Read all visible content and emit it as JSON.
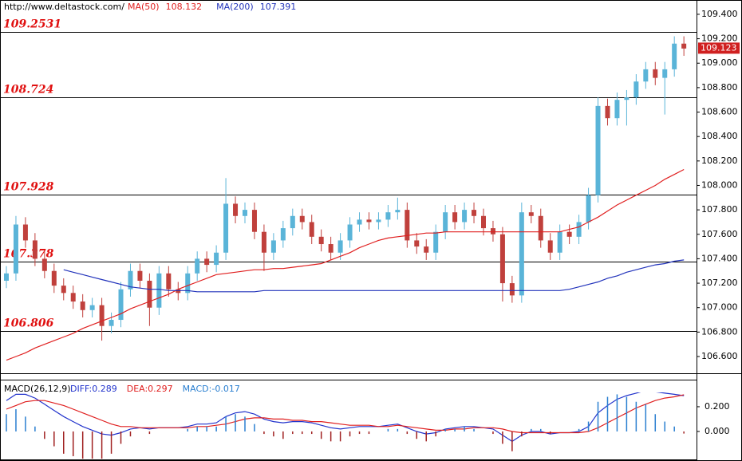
{
  "chart_data": [
    {
      "type": "candlestick",
      "source": "http://www.deltastock.com/",
      "up_color": "#5ab4d8",
      "down_color": "#c0403c",
      "open": [
        107.22,
        107.28,
        107.68,
        107.55,
        107.4,
        107.3,
        107.18,
        107.12,
        107.05,
        106.98,
        107.02,
        106.85,
        106.9,
        107.15,
        107.3,
        107.22,
        107.0,
        107.28,
        107.15,
        107.12,
        107.28,
        107.4,
        107.35,
        107.45,
        107.85,
        107.75,
        107.8,
        107.62,
        107.45,
        107.55,
        107.65,
        107.75,
        107.7,
        107.58,
        107.52,
        107.45,
        107.55,
        107.68,
        107.72,
        107.7,
        107.72,
        107.78,
        107.8,
        107.55,
        107.5,
        107.45,
        107.62,
        107.78,
        107.7,
        107.8,
        107.75,
        107.65,
        107.6,
        107.2,
        107.1,
        107.78,
        107.75,
        107.55,
        107.45,
        107.62,
        107.58,
        107.7,
        107.92,
        108.65,
        108.55,
        108.7,
        108.72,
        108.85,
        108.95,
        108.88,
        108.95,
        109.16
      ],
      "high": [
        107.34,
        107.75,
        107.74,
        107.61,
        107.46,
        107.36,
        107.24,
        107.18,
        107.11,
        107.08,
        107.08,
        106.96,
        107.21,
        107.36,
        107.36,
        107.28,
        107.34,
        107.34,
        107.21,
        107.34,
        107.46,
        107.46,
        107.51,
        108.06,
        107.91,
        107.86,
        107.86,
        107.68,
        107.61,
        107.71,
        107.81,
        107.81,
        107.76,
        107.64,
        107.58,
        107.61,
        107.74,
        107.78,
        107.78,
        107.78,
        107.84,
        107.9,
        107.86,
        107.61,
        107.56,
        107.68,
        107.84,
        107.84,
        107.86,
        107.86,
        107.81,
        107.71,
        107.66,
        107.26,
        107.86,
        107.84,
        107.81,
        107.61,
        107.68,
        107.68,
        107.76,
        107.98,
        108.72,
        108.71,
        108.76,
        108.78,
        108.91,
        109.01,
        109.01,
        109.01,
        109.22,
        109.22
      ],
      "low": [
        107.16,
        107.22,
        107.49,
        107.34,
        107.24,
        107.12,
        107.06,
        106.99,
        106.92,
        106.92,
        106.73,
        106.79,
        106.84,
        107.09,
        107.16,
        106.85,
        106.94,
        107.09,
        107.06,
        107.06,
        107.22,
        107.29,
        107.29,
        107.39,
        107.69,
        107.69,
        107.56,
        107.3,
        107.39,
        107.49,
        107.59,
        107.64,
        107.52,
        107.46,
        107.39,
        107.39,
        107.49,
        107.62,
        107.64,
        107.64,
        107.66,
        107.72,
        107.49,
        107.44,
        107.39,
        107.39,
        107.56,
        107.64,
        107.64,
        107.69,
        107.59,
        107.54,
        107.05,
        107.04,
        107.04,
        107.69,
        107.49,
        107.39,
        107.39,
        107.52,
        107.52,
        107.64,
        107.86,
        108.49,
        108.49,
        108.49,
        108.66,
        108.79,
        108.82,
        108.58,
        108.89,
        109.06
      ],
      "close": [
        107.28,
        107.68,
        107.55,
        107.4,
        107.3,
        107.18,
        107.12,
        107.05,
        106.98,
        107.02,
        106.85,
        106.9,
        107.15,
        107.3,
        107.22,
        107.0,
        107.28,
        107.15,
        107.12,
        107.28,
        107.4,
        107.35,
        107.45,
        107.85,
        107.75,
        107.8,
        107.62,
        107.45,
        107.55,
        107.65,
        107.75,
        107.7,
        107.58,
        107.52,
        107.45,
        107.55,
        107.68,
        107.72,
        107.7,
        107.72,
        107.78,
        107.8,
        107.55,
        107.5,
        107.45,
        107.62,
        107.78,
        107.7,
        107.8,
        107.75,
        107.65,
        107.6,
        107.2,
        107.1,
        107.78,
        107.75,
        107.55,
        107.45,
        107.62,
        107.58,
        107.7,
        107.92,
        108.65,
        108.55,
        108.7,
        108.72,
        108.85,
        108.95,
        108.88,
        108.95,
        109.16,
        109.12
      ],
      "series": [
        {
          "name": "MA(50)",
          "last_value": 108.132,
          "color": "#e02020",
          "values": [
            106.57,
            106.6,
            106.63,
            106.67,
            106.7,
            106.73,
            106.76,
            106.79,
            106.83,
            106.86,
            106.89,
            106.92,
            106.95,
            106.99,
            107.02,
            107.05,
            107.08,
            107.11,
            107.15,
            107.18,
            107.21,
            107.24,
            107.27,
            107.28,
            107.29,
            107.3,
            107.31,
            107.31,
            107.32,
            107.32,
            107.33,
            107.34,
            107.35,
            107.36,
            107.39,
            107.42,
            107.45,
            107.49,
            107.52,
            107.55,
            107.57,
            107.58,
            107.59,
            107.6,
            107.61,
            107.61,
            107.62,
            107.62,
            107.62,
            107.62,
            107.62,
            107.62,
            107.62,
            107.62,
            107.62,
            107.62,
            107.62,
            107.62,
            107.62,
            107.64,
            107.66,
            107.7,
            107.74,
            107.79,
            107.84,
            107.88,
            107.92,
            107.96,
            108.0,
            108.05,
            108.09,
            108.13
          ]
        },
        {
          "name": "MA(200)",
          "last_value": 107.391,
          "color": "#2233bb",
          "values": [
            null,
            null,
            null,
            null,
            null,
            null,
            107.31,
            107.29,
            107.27,
            107.25,
            107.23,
            107.21,
            107.19,
            107.17,
            107.16,
            107.15,
            107.15,
            107.14,
            107.14,
            107.14,
            107.13,
            107.13,
            107.13,
            107.13,
            107.13,
            107.13,
            107.13,
            107.14,
            107.14,
            107.14,
            107.14,
            107.14,
            107.14,
            107.14,
            107.14,
            107.14,
            107.14,
            107.14,
            107.14,
            107.14,
            107.14,
            107.14,
            107.14,
            107.14,
            107.14,
            107.14,
            107.14,
            107.14,
            107.14,
            107.14,
            107.14,
            107.14,
            107.14,
            107.14,
            107.14,
            107.14,
            107.14,
            107.14,
            107.14,
            107.15,
            107.17,
            107.19,
            107.21,
            107.24,
            107.26,
            107.29,
            107.31,
            107.33,
            107.35,
            107.36,
            107.38,
            107.39
          ]
        }
      ],
      "levels": [
        109.2531,
        108.724,
        107.928,
        107.378,
        106.806
      ],
      "last_price": 109.123,
      "ylim": [
        106.463,
        109.517
      ],
      "yticks": [
        {
          "value": 106.6,
          "label": "106.600"
        },
        {
          "value": 106.8,
          "label": "106.800"
        },
        {
          "value": 107.0,
          "label": "107.000"
        },
        {
          "value": 107.2,
          "label": "107.200"
        },
        {
          "value": 107.4,
          "label": "107.400"
        },
        {
          "value": 107.6,
          "label": "107.600"
        },
        {
          "value": 107.8,
          "label": "107.800"
        },
        {
          "value": 108.0,
          "label": "108.000"
        },
        {
          "value": 108.2,
          "label": "108.200"
        },
        {
          "value": 108.4,
          "label": "108.400"
        },
        {
          "value": 108.6,
          "label": "108.600"
        },
        {
          "value": 108.8,
          "label": "108.800"
        },
        {
          "value": 109.0,
          "label": "109.000"
        },
        {
          "value": 109.2,
          "label": "109.200"
        },
        {
          "value": 109.4,
          "label": "109.400"
        }
      ]
    },
    {
      "type": "macd",
      "title": "MACD(26,12,9)",
      "series": [
        {
          "name": "DIFF:0.289",
          "color": "#2233cc",
          "values": [
            0.25,
            0.3,
            0.3,
            0.27,
            0.22,
            0.17,
            0.12,
            0.08,
            0.04,
            0.01,
            -0.02,
            -0.03,
            -0.01,
            0.02,
            0.03,
            0.02,
            0.03,
            0.03,
            0.03,
            0.04,
            0.06,
            0.06,
            0.07,
            0.12,
            0.15,
            0.16,
            0.14,
            0.1,
            0.08,
            0.07,
            0.08,
            0.08,
            0.07,
            0.05,
            0.03,
            0.02,
            0.03,
            0.04,
            0.04,
            0.04,
            0.05,
            0.06,
            0.03,
            0.0,
            -0.02,
            -0.01,
            0.02,
            0.03,
            0.04,
            0.04,
            0.03,
            0.02,
            -0.03,
            -0.08,
            -0.03,
            0.0,
            0.0,
            -0.02,
            -0.01,
            -0.01,
            0.0,
            0.04,
            0.15,
            0.21,
            0.26,
            0.29,
            0.31,
            0.33,
            0.32,
            0.31,
            0.3,
            0.289
          ]
        },
        {
          "name": "DEA:0.297",
          "color": "#e02020",
          "values": [
            0.18,
            0.21,
            0.24,
            0.25,
            0.25,
            0.23,
            0.21,
            0.18,
            0.15,
            0.12,
            0.09,
            0.06,
            0.04,
            0.04,
            0.03,
            0.03,
            0.03,
            0.03,
            0.03,
            0.03,
            0.04,
            0.04,
            0.05,
            0.06,
            0.08,
            0.1,
            0.11,
            0.11,
            0.1,
            0.1,
            0.09,
            0.09,
            0.08,
            0.08,
            0.07,
            0.06,
            0.05,
            0.05,
            0.05,
            0.04,
            0.04,
            0.05,
            0.04,
            0.03,
            0.02,
            0.01,
            0.01,
            0.02,
            0.02,
            0.03,
            0.03,
            0.03,
            0.02,
            0.0,
            -0.01,
            -0.01,
            -0.01,
            -0.01,
            -0.01,
            -0.01,
            -0.01,
            0.0,
            0.03,
            0.07,
            0.11,
            0.15,
            0.19,
            0.22,
            0.25,
            0.27,
            0.28,
            0.297
          ]
        },
        {
          "name": "MACD:-0.017",
          "kind": "bar",
          "color": "#2a7fd0",
          "negative_color": "#a02020",
          "values": [
            0.14,
            0.18,
            0.12,
            0.04,
            -0.06,
            -0.12,
            -0.18,
            -0.2,
            -0.22,
            -0.22,
            -0.22,
            -0.18,
            -0.1,
            -0.04,
            0.0,
            -0.02,
            0.0,
            0.0,
            0.0,
            0.02,
            0.04,
            0.04,
            0.04,
            0.12,
            0.14,
            0.12,
            0.06,
            -0.02,
            -0.04,
            -0.06,
            -0.02,
            -0.02,
            -0.02,
            -0.06,
            -0.08,
            -0.08,
            -0.04,
            -0.02,
            -0.02,
            0.0,
            0.02,
            0.02,
            -0.02,
            -0.06,
            -0.08,
            -0.04,
            0.02,
            0.02,
            0.04,
            0.02,
            0.0,
            -0.02,
            -0.1,
            -0.16,
            -0.04,
            0.02,
            0.02,
            -0.02,
            0.0,
            0.0,
            0.02,
            0.08,
            0.24,
            0.28,
            0.3,
            0.28,
            0.24,
            0.22,
            0.14,
            0.08,
            0.04,
            -0.017
          ]
        }
      ],
      "ylim": [
        -0.226,
        0.406
      ],
      "yticks": [
        {
          "value": 0.2,
          "label": "0.200"
        },
        {
          "value": 0.0,
          "label": "0.000"
        }
      ]
    }
  ]
}
